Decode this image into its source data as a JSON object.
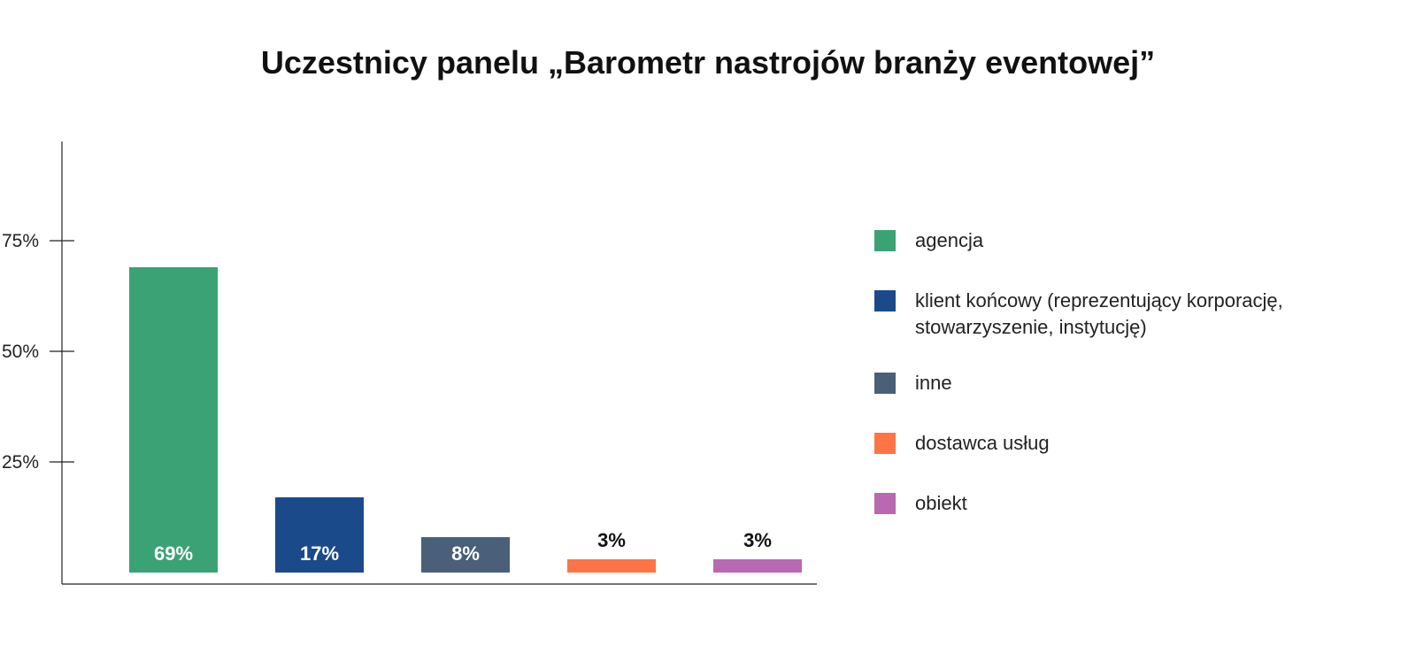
{
  "chart_data": {
    "type": "bar",
    "title": "Uczestnicy panelu „Barometr nastrojów branży eventowej”",
    "categories": [
      "agencja",
      "klient końcowy (reprezentujący korporację, stowarzyszenie, instytucję)",
      "inne",
      "dostawca usług",
      "obiekt"
    ],
    "values": [
      69,
      17,
      8,
      3,
      3
    ],
    "data_labels": [
      "69%",
      "17%",
      "8%",
      "3%",
      "3%"
    ],
    "colors": [
      "#3ba275",
      "#1b4a8a",
      "#4a6079",
      "#fe7446",
      "#b968b2"
    ],
    "ylim": [
      0,
      100
    ],
    "yticks": [
      25,
      50,
      75
    ],
    "ytick_labels": [
      "25%",
      "50%",
      "75%"
    ],
    "xlabel": "",
    "ylabel": "",
    "grid": false,
    "legend_position": "right"
  }
}
